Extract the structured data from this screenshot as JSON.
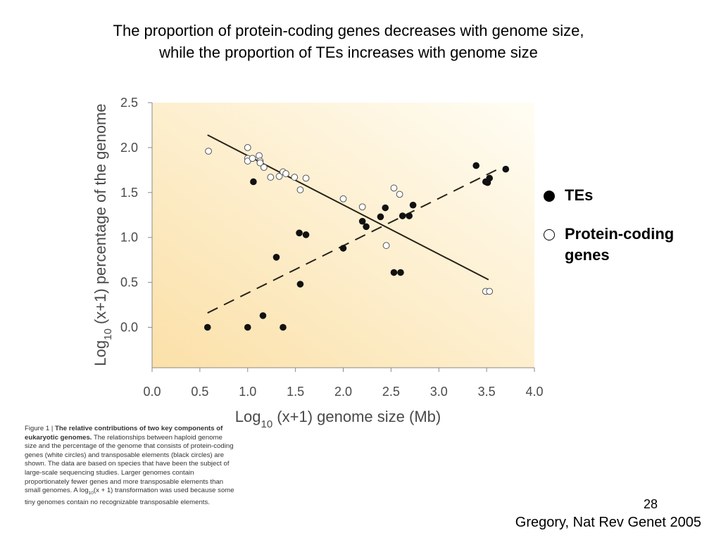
{
  "slide": {
    "title_line1": "The proportion of protein-coding genes decreases with genome size,",
    "title_line2": "while the proportion of TEs increases with genome size",
    "page_number": "28",
    "citation": "Gregory, Nat Rev Genet 2005"
  },
  "legend": {
    "tes_label": "TEs",
    "pc_label_line1": "Protein-coding",
    "pc_label_line2": "genes"
  },
  "caption": {
    "fig_num": "Figure 1 | ",
    "bold": "The relative contributions of two key components of eukaryotic genomes.",
    "text_before_sub": " The relationships between haploid genome size and the percentage of the genome that consists of protein-coding genes (white circles) and transposable elements (black circles) are shown. The data are based on species that have been the subject of large-scale sequencing studies. Larger genomes contain proportionately fewer genes and more transposable elements than small genomes. A log",
    "sub": "10",
    "text_after_sub": "(x + 1) transformation was used because some tiny genomes contain no recognizable transposable elements."
  },
  "colors": {
    "background_light": "#fffdf4",
    "background_dark": "#fbe0a8",
    "axis": "#8a8a8a",
    "text": "#4a4a4a",
    "line": "#2a2118"
  },
  "chart_data": {
    "type": "scatter",
    "xlabel_main": "Log",
    "xlabel_sub": "10",
    "xlabel_rest": " (x+1) genome size (Mb)",
    "ylabel_main": "Log",
    "ylabel_sub": "10",
    "ylabel_rest": " (x+1) percentage of the genome",
    "xlim": [
      0.0,
      4.0
    ],
    "ylim": [
      -0.45,
      2.5
    ],
    "x_ticks": [
      "0.0",
      "0.5",
      "1.0",
      "1.5",
      "2.0",
      "2.5",
      "3.0",
      "3.5",
      "4.0"
    ],
    "y_ticks": [
      "0.0",
      "0.5",
      "1.0",
      "1.5",
      "2.0",
      "2.5"
    ],
    "series": [
      {
        "name": "Protein-coding genes",
        "marker": "hollow",
        "points": [
          [
            0.59,
            1.96
          ],
          [
            1.0,
            2.0
          ],
          [
            1.0,
            1.88
          ],
          [
            1.0,
            1.85
          ],
          [
            1.05,
            1.88
          ],
          [
            1.12,
            1.91
          ],
          [
            1.13,
            1.85
          ],
          [
            1.13,
            1.83
          ],
          [
            1.17,
            1.78
          ],
          [
            1.24,
            1.67
          ],
          [
            1.33,
            1.68
          ],
          [
            1.37,
            1.73
          ],
          [
            1.4,
            1.71
          ],
          [
            1.49,
            1.67
          ],
          [
            1.55,
            1.53
          ],
          [
            1.61,
            1.66
          ],
          [
            2.0,
            1.43
          ],
          [
            2.2,
            1.34
          ],
          [
            2.45,
            0.91
          ],
          [
            2.53,
            1.55
          ],
          [
            2.59,
            1.48
          ],
          [
            3.49,
            0.4
          ],
          [
            3.53,
            0.4
          ]
        ]
      },
      {
        "name": "TEs",
        "marker": "filled",
        "points": [
          [
            0.58,
            0.0
          ],
          [
            1.0,
            0.0
          ],
          [
            1.06,
            1.62
          ],
          [
            1.16,
            0.13
          ],
          [
            1.3,
            0.78
          ],
          [
            1.37,
            0.0
          ],
          [
            1.54,
            1.05
          ],
          [
            1.55,
            0.48
          ],
          [
            1.61,
            1.03
          ],
          [
            2.0,
            0.88
          ],
          [
            2.2,
            1.18
          ],
          [
            2.24,
            1.12
          ],
          [
            2.39,
            1.23
          ],
          [
            2.44,
            1.33
          ],
          [
            2.53,
            0.61
          ],
          [
            2.6,
            0.61
          ],
          [
            2.62,
            1.24
          ],
          [
            2.69,
            1.24
          ],
          [
            2.73,
            1.36
          ],
          [
            3.39,
            1.8
          ],
          [
            3.49,
            1.62
          ],
          [
            3.51,
            1.61
          ],
          [
            3.53,
            1.66
          ],
          [
            3.7,
            1.76
          ]
        ]
      }
    ],
    "trend_lines": [
      {
        "series": "Protein-coding genes",
        "style": "solid",
        "x1": 0.58,
        "y1": 2.14,
        "x2": 3.52,
        "y2": 0.53
      },
      {
        "series": "TEs",
        "style": "dashed",
        "x1": 0.58,
        "y1": 0.16,
        "x2": 3.6,
        "y2": 1.75
      }
    ],
    "grid": false
  }
}
